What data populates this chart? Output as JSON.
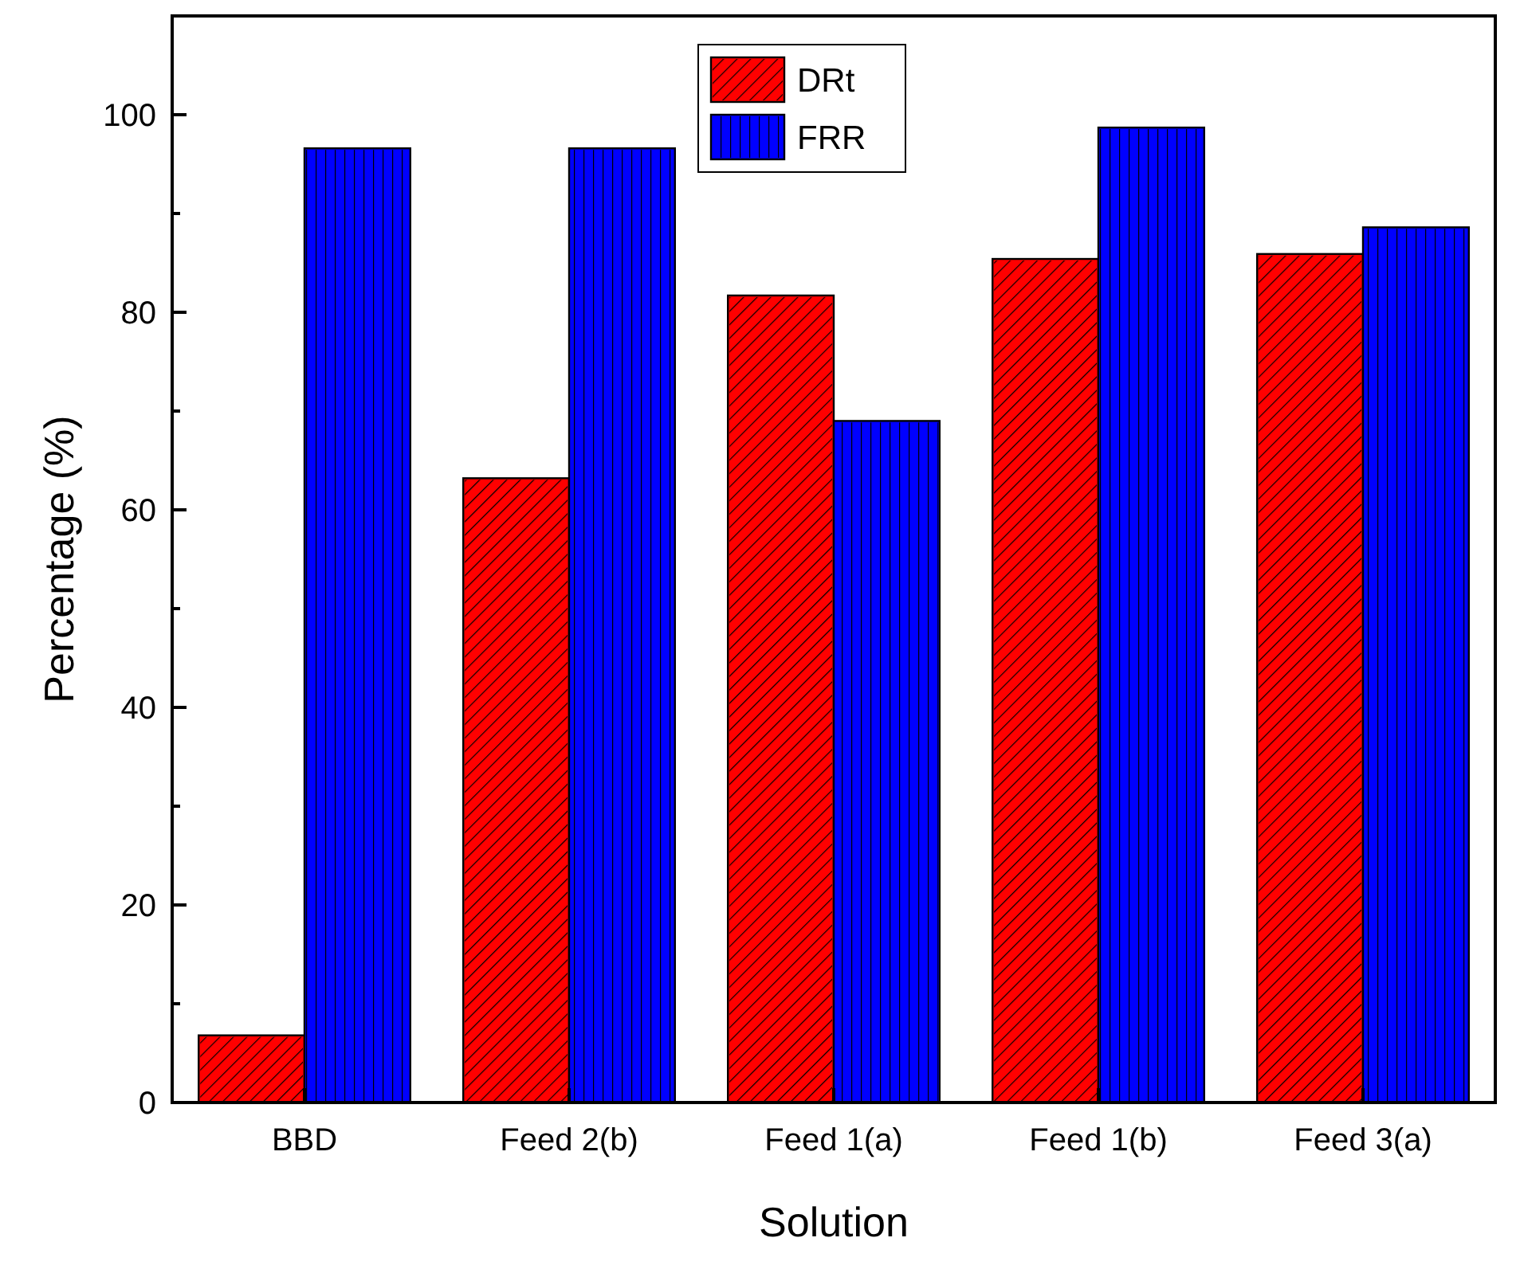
{
  "chart_data": {
    "type": "bar",
    "xlabel": "Solution",
    "ylabel": "Percentage (%)",
    "categories": [
      "BBD",
      "Feed 2(b)",
      "Feed 1(a)",
      "Feed 1(b)",
      "Feed 3(a)"
    ],
    "series": [
      {
        "name": "DRt",
        "color": "#ff0000",
        "values": [
          6.8,
          63.2,
          81.7,
          85.4,
          85.9
        ]
      },
      {
        "name": "FRR",
        "color": "#0000ff",
        "values": [
          96.6,
          96.6,
          69.0,
          98.7,
          88.6
        ]
      }
    ],
    "ylim": [
      0,
      110
    ],
    "yticks": [
      0,
      20,
      40,
      60,
      80,
      100
    ],
    "legend": "top",
    "grid": false
  }
}
